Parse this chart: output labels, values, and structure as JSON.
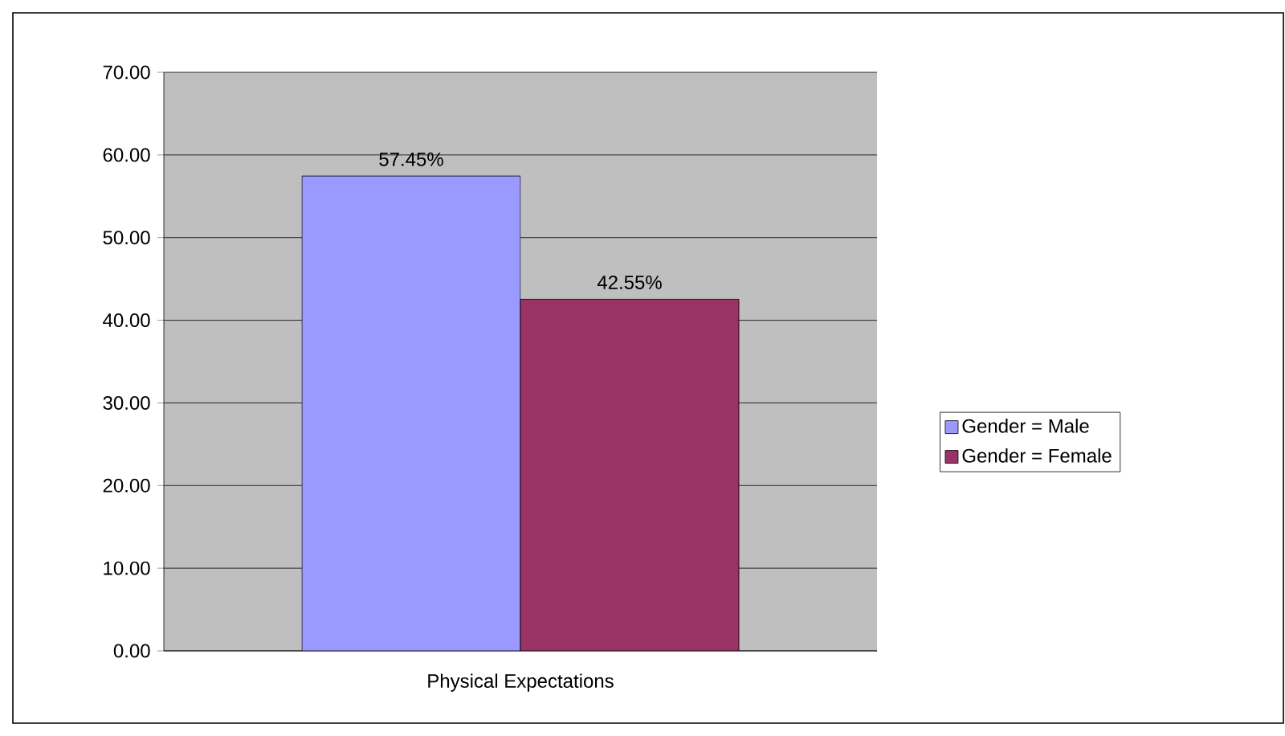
{
  "chart_data": {
    "type": "bar",
    "categories": [
      "Physical Expectations"
    ],
    "series": [
      {
        "name": "Gender = Male",
        "color": "#9999ff",
        "values": [
          57.45
        ],
        "value_labels": [
          "57.45%"
        ]
      },
      {
        "name": "Gender = Female",
        "color": "#993366",
        "values": [
          42.55
        ],
        "value_labels": [
          "42.55%"
        ]
      }
    ],
    "ylim": [
      0,
      70
    ],
    "yticks": [
      {
        "value": 0,
        "label": "0.00"
      },
      {
        "value": 10,
        "label": "10.00"
      },
      {
        "value": 20,
        "label": "20.00"
      },
      {
        "value": 30,
        "label": "30.00"
      },
      {
        "value": 40,
        "label": "40.00"
      },
      {
        "value": 50,
        "label": "50.00"
      },
      {
        "value": 60,
        "label": "60.00"
      },
      {
        "value": 70,
        "label": "70.00"
      }
    ],
    "grid": "y",
    "legend": "right"
  }
}
